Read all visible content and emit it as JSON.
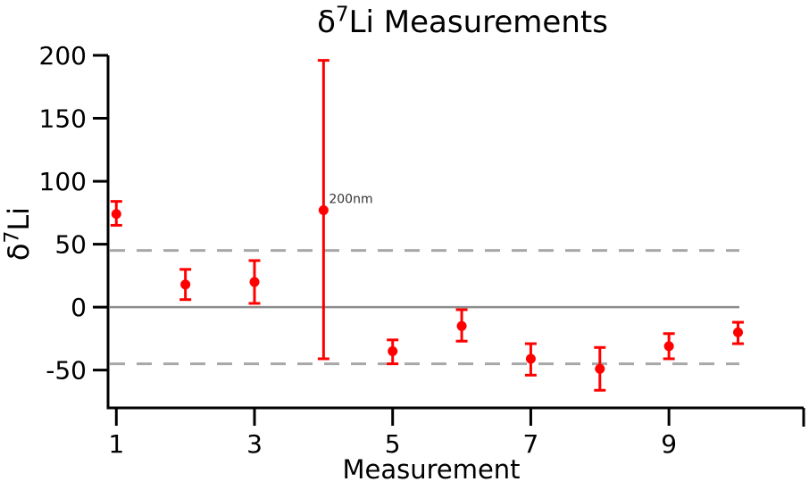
{
  "figure": {
    "title": {
      "prefix": "δ",
      "sup": "7",
      "rest": "Li Measurements"
    },
    "ylabel": {
      "prefix": "δ",
      "sup": "7",
      "rest": "Li"
    },
    "xlabel": "Measurement"
  },
  "chart_data": {
    "type": "scatter",
    "title": "δ7Li Measurements",
    "xlabel": "Measurement",
    "ylabel": "δ7Li",
    "x_ticks": [
      1,
      3,
      5,
      7,
      9
    ],
    "y_ticks": [
      200,
      150,
      100,
      50,
      0,
      -50
    ],
    "xlim": [
      0.88,
      10.95
    ],
    "ylim": [
      -80,
      200
    ],
    "grid": false,
    "legend": "none",
    "colors": {
      "marker": "#ff0000",
      "zero_line": "#8c8c8c",
      "tolerance_line": "#a8a8a8",
      "axis": "#000000",
      "annotation_text": "#333333"
    },
    "ref_lines": [
      {
        "y": 0,
        "style": "solid",
        "label": "zero-line"
      },
      {
        "y": 45,
        "style": "dashed",
        "label": "upper-tolerance-line"
      },
      {
        "y": -45,
        "style": "dashed",
        "label": "lower-tolerance-line"
      }
    ],
    "series": [
      {
        "name": "δ7Li measurements",
        "marker": "circle",
        "points": [
          {
            "x": 1,
            "y": 74,
            "y_hi": 84,
            "y_lo": 65
          },
          {
            "x": 2,
            "y": 18,
            "y_hi": 30,
            "y_lo": 6
          },
          {
            "x": 3,
            "y": 20,
            "y_hi": 37,
            "y_lo": 3
          },
          {
            "x": 4,
            "y": 77,
            "y_hi": 196,
            "y_lo": -41,
            "annotation": "200nm"
          },
          {
            "x": 5,
            "y": -35,
            "y_hi": -26,
            "y_lo": -45
          },
          {
            "x": 6,
            "y": -15,
            "y_hi": -2,
            "y_lo": -27
          },
          {
            "x": 7,
            "y": -41,
            "y_hi": -29,
            "y_lo": -54
          },
          {
            "x": 8,
            "y": -49,
            "y_hi": -32,
            "y_lo": -66
          },
          {
            "x": 9,
            "y": -31,
            "y_hi": -21,
            "y_lo": -41
          },
          {
            "x": 10,
            "y": -20,
            "y_hi": -12,
            "y_lo": -29
          }
        ]
      }
    ]
  }
}
